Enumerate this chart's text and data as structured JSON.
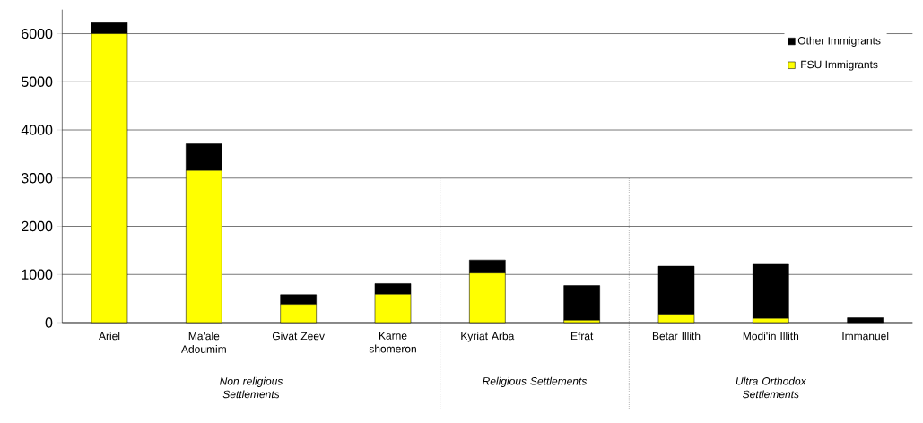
{
  "chart_data": {
    "type": "bar",
    "stacked": true,
    "categories": [
      "Ariel",
      "Ma'ale Adoumim",
      "Givat Zeev",
      "Karne shomeron",
      "Kyriat Arba",
      "Efrat",
      "Betar Illith",
      "Modi'in Illith",
      "Immanuel"
    ],
    "series": [
      {
        "name": "FSU Immigrants",
        "color": "#ffff00",
        "values": [
          6000,
          3160,
          380,
          590,
          1030,
          50,
          170,
          90,
          0
        ]
      },
      {
        "name": "Other Immigrants",
        "color": "#000000",
        "values": [
          230,
          550,
          200,
          220,
          270,
          720,
          1000,
          1120,
          100
        ]
      }
    ],
    "ylim": [
      0,
      6500
    ],
    "yticks": [
      0,
      1000,
      2000,
      3000,
      4000,
      5000,
      6000
    ],
    "grid": "y",
    "legend": "top right",
    "annotations": [
      "Non religious Settlements",
      "Religious Settlements",
      "Ultra Orthodox Settlements"
    ]
  }
}
